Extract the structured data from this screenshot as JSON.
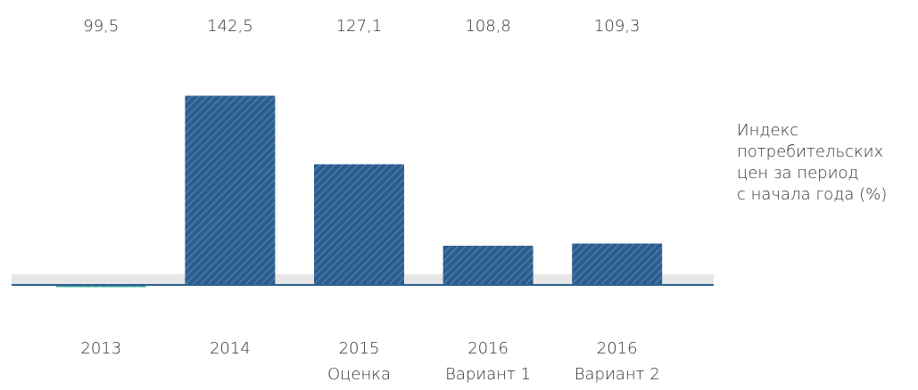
{
  "chart_data": {
    "type": "bar",
    "categories": [
      [
        "2013"
      ],
      [
        "2014"
      ],
      [
        "2015",
        "Оценка"
      ],
      [
        "2016",
        "Вариант 1"
      ],
      [
        "2016",
        "Вариант 2"
      ]
    ],
    "values": [
      99.5,
      142.5,
      127.1,
      108.8,
      109.3
    ],
    "value_labels": [
      "99,5",
      "142,5",
      "127,1",
      "108,8",
      "109,3"
    ],
    "colors": [
      "#3aa597",
      "#2b5d8f",
      "#2b5d8f",
      "#2b5d8f",
      "#2b5d8f"
    ],
    "baseline": 100,
    "ylim": [
      95,
      145
    ],
    "annotation": [
      "Индекс",
      "потребительских",
      "цен за период",
      "с начала года (%)"
    ]
  }
}
